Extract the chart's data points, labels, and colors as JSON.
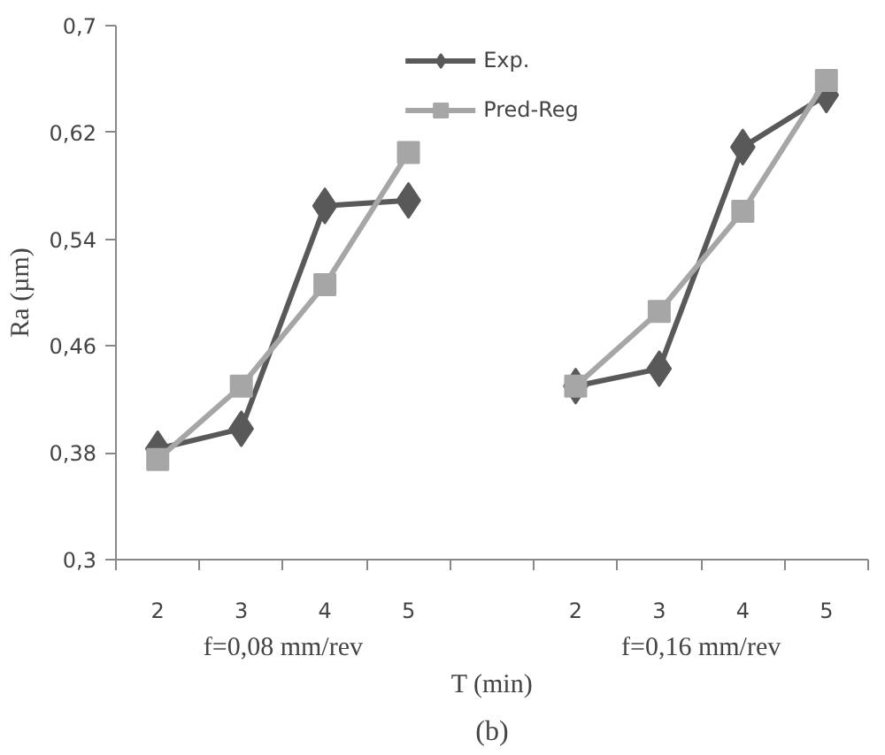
{
  "chart_data": {
    "type": "line",
    "xlabel": "T (min)",
    "ylabel": "Ra (µm)",
    "categories": [
      "2",
      "3",
      "4",
      "5",
      null,
      "2",
      "3",
      "4",
      "5"
    ],
    "series": [
      {
        "name": "Exp.",
        "color": "#595959",
        "marker": "diamond",
        "values": [
          0.383,
          0.398,
          0.565,
          0.569,
          null,
          0.43,
          0.443,
          0.609,
          0.648
        ]
      },
      {
        "name": "Pred-Reg",
        "color": "#a6a6a6",
        "marker": "square",
        "values": [
          0.375,
          0.43,
          0.506,
          0.605,
          null,
          0.43,
          0.486,
          0.561,
          0.659
        ]
      }
    ],
    "ylim": [
      0.3,
      0.7
    ],
    "yticks": [
      {
        "value": 0.3,
        "label": "0,3"
      },
      {
        "value": 0.38,
        "label": "0,38"
      },
      {
        "value": 0.46,
        "label": "0,46"
      },
      {
        "value": 0.54,
        "label": "0,54"
      },
      {
        "value": 0.62,
        "label": "0,62"
      },
      {
        "value": 0.7,
        "label": "0,7"
      }
    ],
    "annotations": [
      "f=0,08 mm/rev",
      "f=0,16 mm/rev",
      "(b)"
    ],
    "grid": false,
    "legend": "top",
    "line_style": "solid"
  }
}
